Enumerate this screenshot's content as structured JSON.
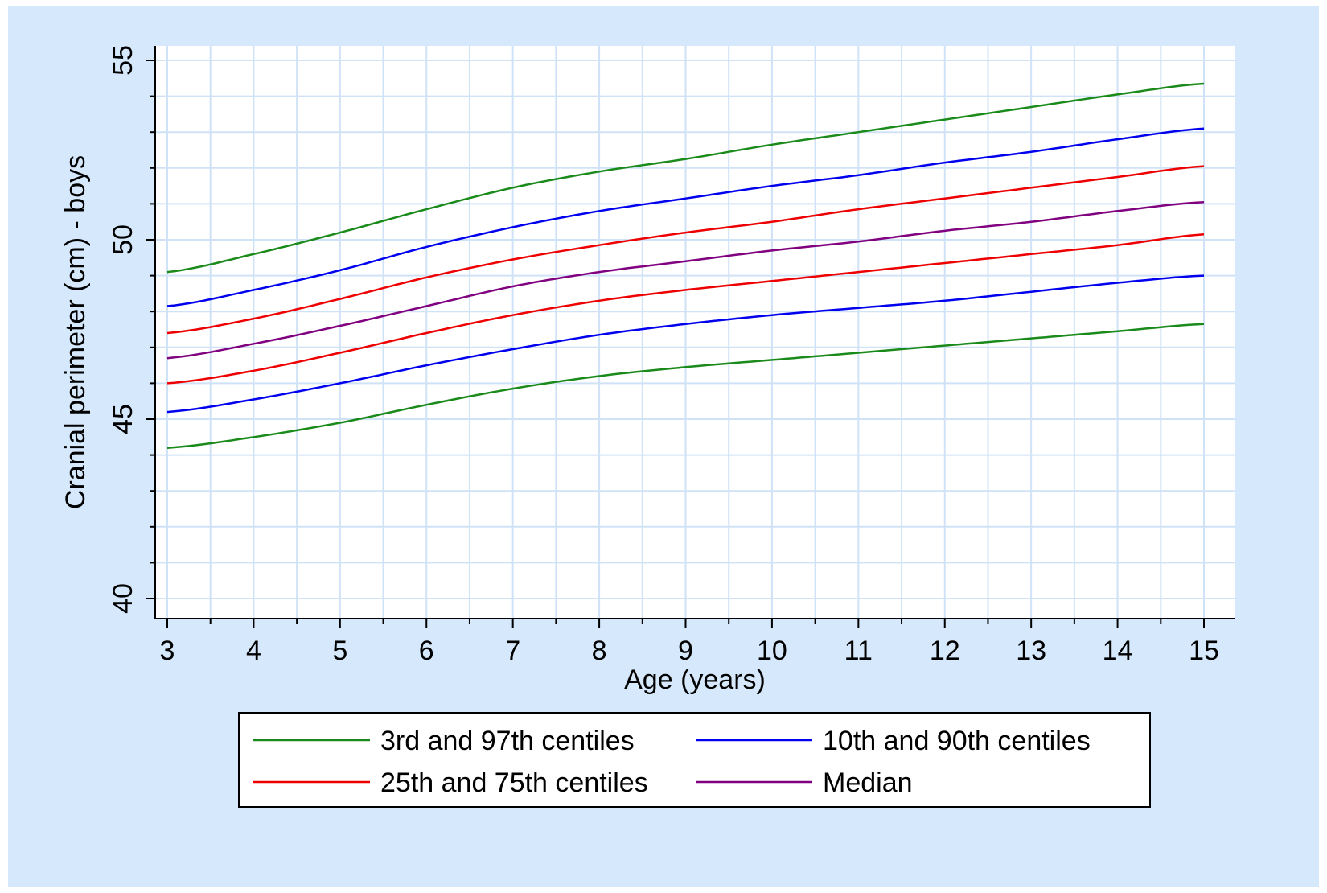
{
  "chart_data": {
    "type": "line",
    "xlabel": "Age (years)",
    "ylabel": "Cranial perimeter (cm) - boys",
    "xlim": [
      3,
      15
    ],
    "ylim": [
      40,
      55
    ],
    "xticks": [
      "3",
      "4",
      "5",
      "6",
      "7",
      "8",
      "9",
      "10",
      "11",
      "12",
      "13",
      "14",
      "15"
    ],
    "yticks": [
      "40",
      "45",
      "50",
      "55"
    ],
    "grid": true,
    "legend_position": "bottom",
    "x": [
      3,
      4,
      5,
      6,
      7,
      8,
      9,
      10,
      11,
      12,
      13,
      14,
      15
    ],
    "series": [
      {
        "name": "3rd and 97th centiles",
        "color": "#1a8a1a",
        "values": [
          44.2,
          44.5,
          44.9,
          45.4,
          45.85,
          46.2,
          46.45,
          46.65,
          46.85,
          47.05,
          47.25,
          47.45,
          47.65
        ]
      },
      {
        "name": "10th and 90th centiles",
        "color": "#0000ee",
        "values": [
          45.2,
          45.55,
          46.0,
          46.5,
          46.95,
          47.35,
          47.65,
          47.9,
          48.1,
          48.3,
          48.55,
          48.8,
          49.0
        ]
      },
      {
        "name": "25th and 75th centiles",
        "color": "#ee0000",
        "values": [
          46.0,
          46.35,
          46.85,
          47.4,
          47.9,
          48.3,
          48.6,
          48.85,
          49.1,
          49.35,
          49.6,
          49.85,
          50.15
        ]
      },
      {
        "name": "Median",
        "color": "#800080",
        "values": [
          46.7,
          47.1,
          47.6,
          48.15,
          48.7,
          49.1,
          49.4,
          49.7,
          49.95,
          50.25,
          50.5,
          50.8,
          51.05
        ]
      },
      {
        "name": "25th and 75th centiles",
        "color": "#ee0000",
        "values": [
          47.4,
          47.8,
          48.35,
          48.95,
          49.45,
          49.85,
          50.2,
          50.5,
          50.85,
          51.15,
          51.45,
          51.75,
          52.05
        ]
      },
      {
        "name": "10th and 90th centiles",
        "color": "#0000ee",
        "values": [
          48.15,
          48.6,
          49.15,
          49.8,
          50.35,
          50.8,
          51.15,
          51.5,
          51.8,
          52.15,
          52.45,
          52.8,
          53.1
        ]
      },
      {
        "name": "3rd and 97th centiles",
        "color": "#1a8a1a",
        "values": [
          49.1,
          49.6,
          50.2,
          50.85,
          51.45,
          51.9,
          52.25,
          52.65,
          53.0,
          53.35,
          53.7,
          54.05,
          54.35
        ]
      }
    ],
    "legend": [
      {
        "label": "3rd and 97th centiles",
        "color": "#1a8a1a"
      },
      {
        "label": "10th and 90th centiles",
        "color": "#0000ee"
      },
      {
        "label": "25th and 75th centiles",
        "color": "#ee0000"
      },
      {
        "label": "Median",
        "color": "#800080"
      }
    ]
  }
}
